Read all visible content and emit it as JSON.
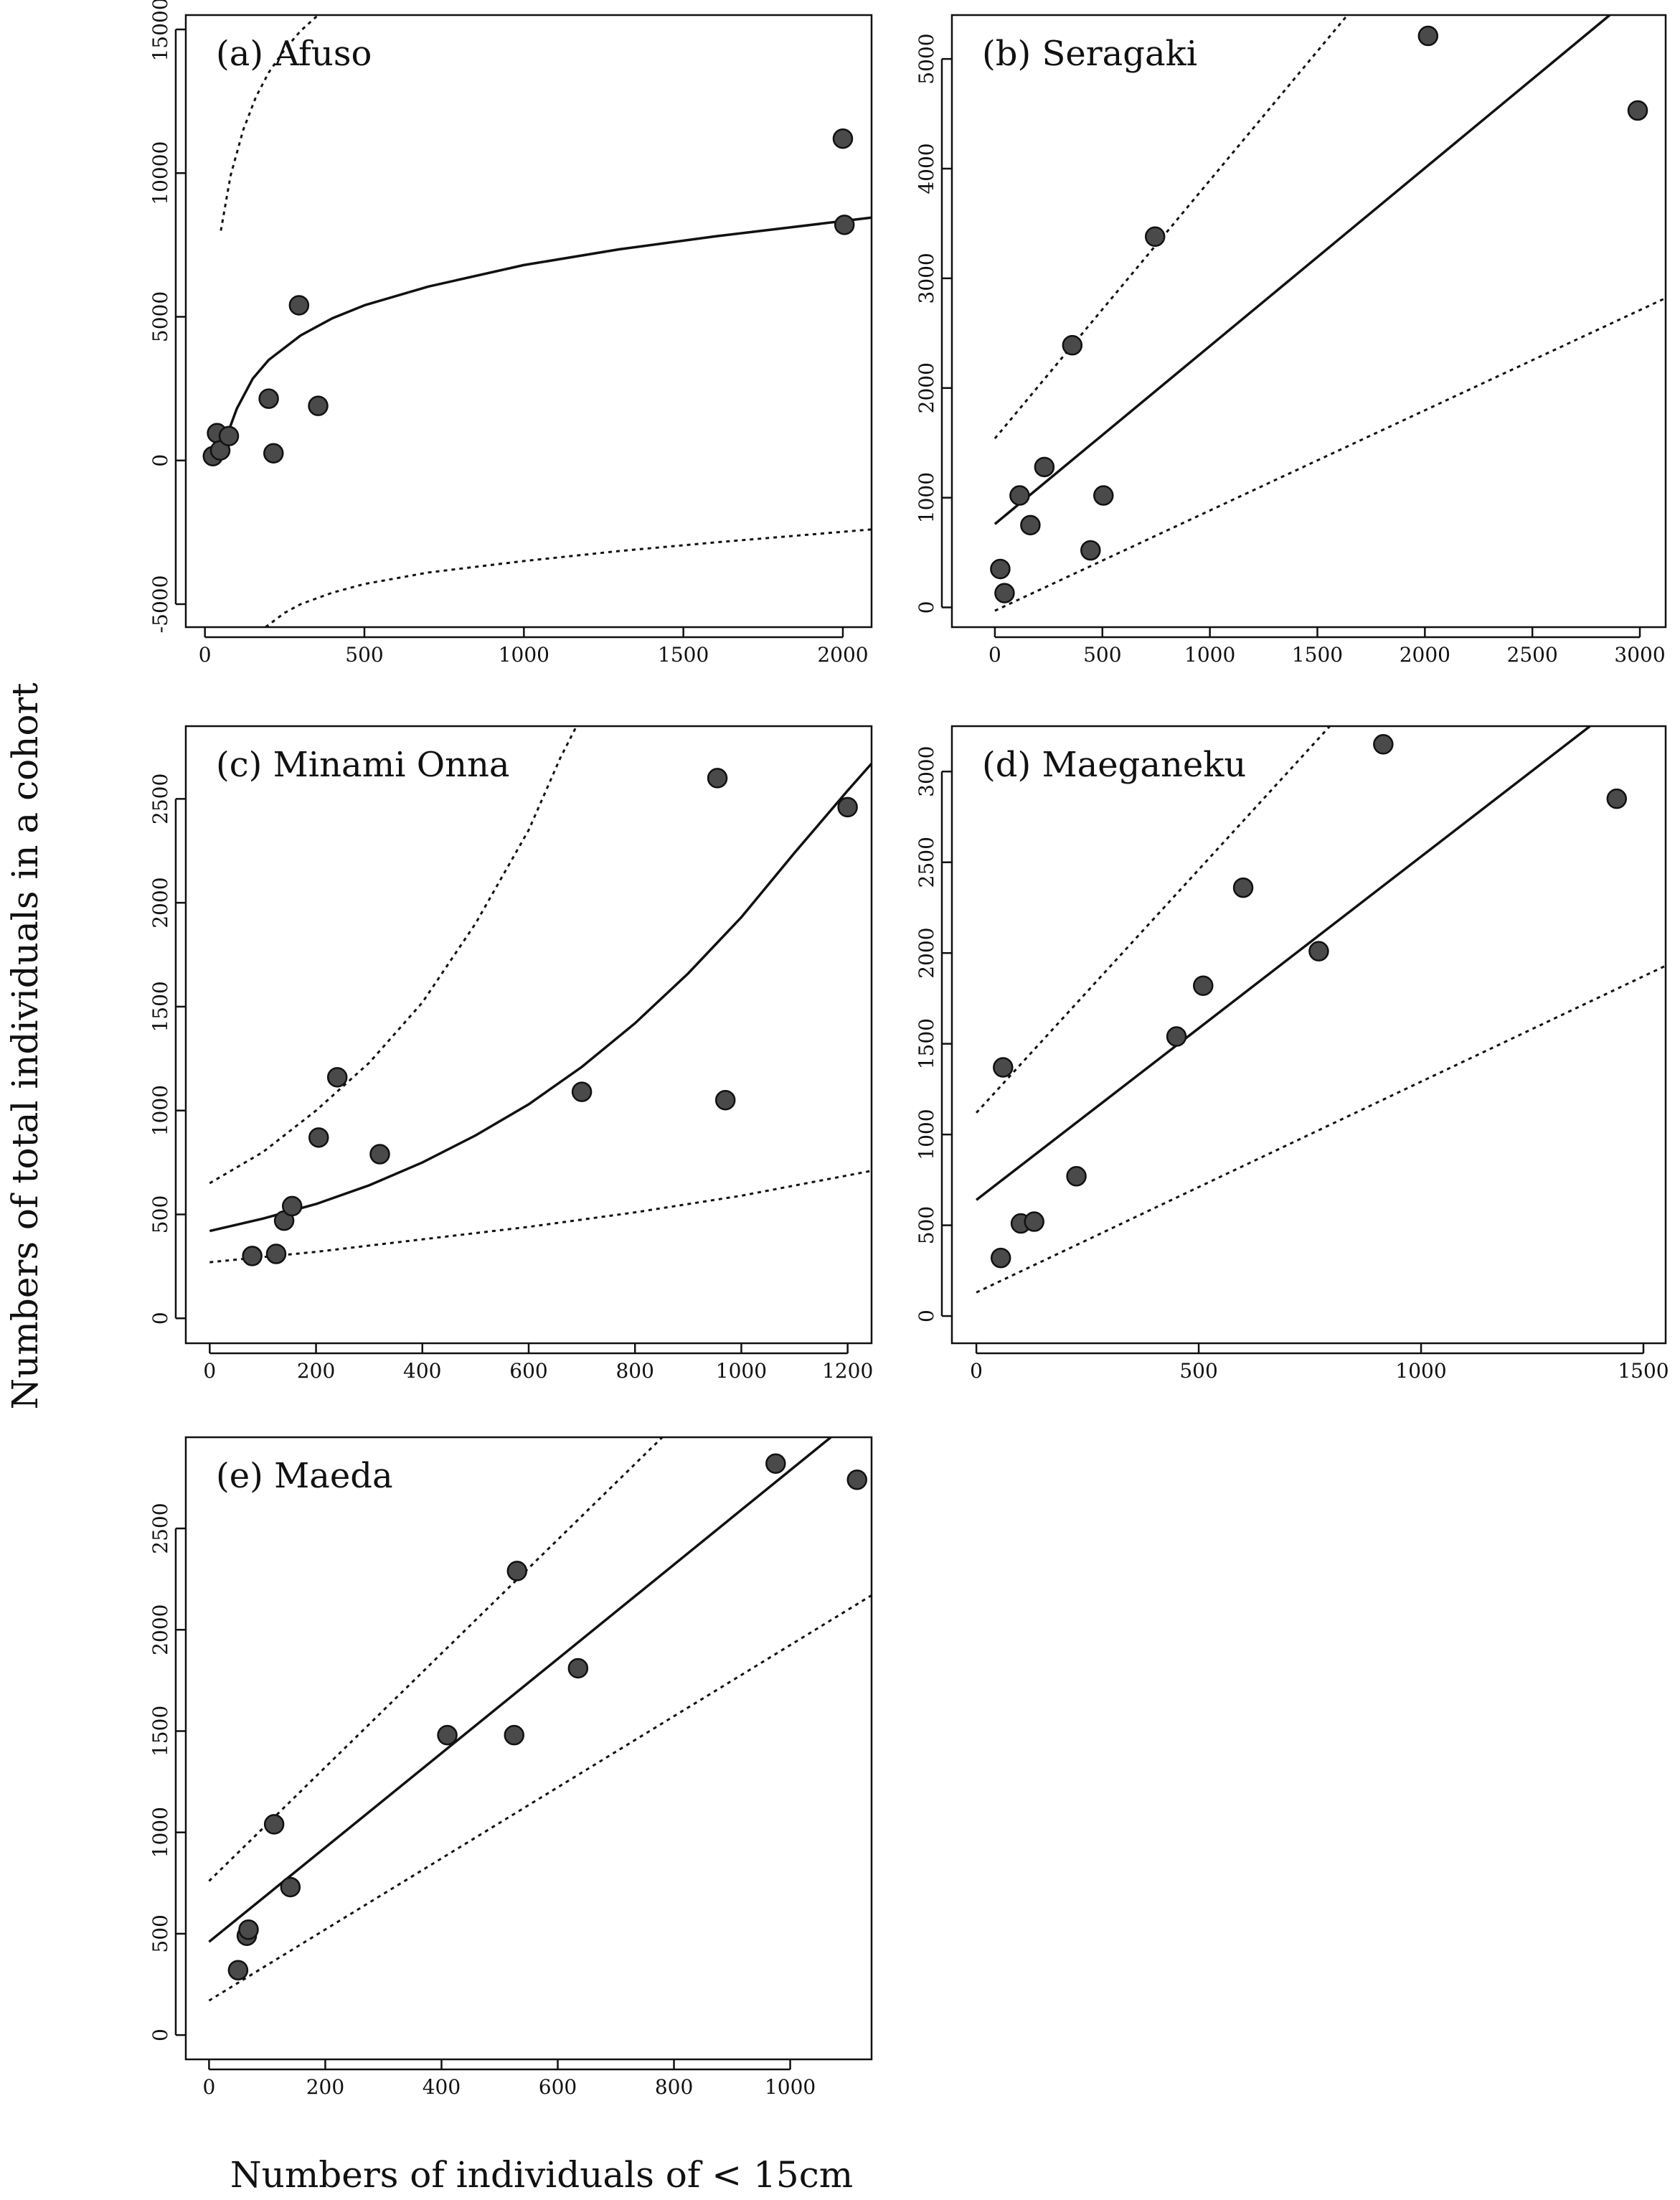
{
  "figure": {
    "ylabel": "Numbers of total individuals in a cohort",
    "xlabel": "Numbers of individuals of < 15cm"
  },
  "chart_data": [
    {
      "id": "a",
      "type": "scatter",
      "title": "(a) Afuso",
      "xlim": [
        -60,
        2090
      ],
      "ylim": [
        -5800,
        15500
      ],
      "xticks": [
        0,
        500,
        1000,
        1500,
        2000
      ],
      "yticks": [
        -5000,
        0,
        5000,
        10000,
        15000
      ],
      "points": [
        [
          25,
          150
        ],
        [
          38,
          950
        ],
        [
          48,
          350
        ],
        [
          75,
          850
        ],
        [
          200,
          2150
        ],
        [
          215,
          250
        ],
        [
          295,
          5400
        ],
        [
          355,
          1900
        ],
        [
          2000,
          11200
        ],
        [
          2005,
          8200
        ]
      ],
      "fit": {
        "kind": "log",
        "x": [
          75,
          100,
          150,
          200,
          300,
          400,
          500,
          700,
          1000,
          1300,
          1600,
          2090
        ],
        "y": [
          1050,
          1800,
          2850,
          3500,
          4350,
          4950,
          5400,
          6050,
          6800,
          7350,
          7800,
          8450
        ]
      },
      "upper": {
        "kind": "curve",
        "x": [
          50,
          80,
          120,
          160,
          200,
          250,
          300,
          350,
          400
        ],
        "y": [
          8000,
          9900,
          11500,
          12650,
          13500,
          14300,
          14950,
          15450,
          15800
        ]
      },
      "lower": {
        "kind": "curve",
        "x": [
          190,
          250,
          300,
          400,
          500,
          700,
          1000,
          1300,
          1600,
          2090
        ],
        "y": [
          -5800,
          -5300,
          -5000,
          -4600,
          -4300,
          -3900,
          -3500,
          -3150,
          -2850,
          -2400
        ]
      }
    },
    {
      "id": "b",
      "type": "scatter",
      "title": "(b) Seragaki",
      "xlim": [
        -200,
        3120
      ],
      "ylim": [
        -180,
        5400
      ],
      "xticks": [
        0,
        500,
        1000,
        1500,
        2000,
        2500,
        3000
      ],
      "yticks": [
        0,
        1000,
        2000,
        3000,
        4000,
        5000
      ],
      "points": [
        [
          25,
          350
        ],
        [
          45,
          130
        ],
        [
          115,
          1020
        ],
        [
          165,
          750
        ],
        [
          230,
          1280
        ],
        [
          360,
          2390
        ],
        [
          445,
          520
        ],
        [
          505,
          1020
        ],
        [
          745,
          3380
        ],
        [
          2015,
          5210
        ],
        [
          2990,
          4530
        ]
      ],
      "fit": {
        "kind": "line",
        "x": [
          0,
          2860
        ],
        "y": [
          760,
          5400
        ]
      },
      "upper": {
        "kind": "line",
        "x": [
          0,
          1640
        ],
        "y": [
          1540,
          5400
        ]
      },
      "lower": {
        "kind": "line",
        "x": [
          0,
          3120
        ],
        "y": [
          -30,
          2820
        ]
      }
    },
    {
      "id": "c",
      "type": "scatter",
      "title": "(c) Minami Onna",
      "xlim": [
        -45,
        1245
      ],
      "ylim": [
        -120,
        2850
      ],
      "xticks": [
        0,
        200,
        400,
        600,
        800,
        1000,
        1200
      ],
      "yticks": [
        0,
        500,
        1000,
        1500,
        2000,
        2500
      ],
      "points": [
        [
          80,
          300
        ],
        [
          125,
          310
        ],
        [
          140,
          470
        ],
        [
          155,
          540
        ],
        [
          205,
          870
        ],
        [
          240,
          1160
        ],
        [
          320,
          790
        ],
        [
          700,
          1090
        ],
        [
          955,
          2600
        ],
        [
          970,
          1050
        ],
        [
          1200,
          2460
        ]
      ],
      "fit": {
        "kind": "curve",
        "x": [
          0,
          100,
          200,
          300,
          400,
          500,
          600,
          700,
          800,
          900,
          1000,
          1100,
          1200,
          1245
        ],
        "y": [
          420,
          480,
          550,
          640,
          750,
          880,
          1030,
          1210,
          1420,
          1660,
          1930,
          2240,
          2540,
          2670
        ]
      },
      "upper": {
        "kind": "curve",
        "x": [
          0,
          100,
          200,
          300,
          400,
          500,
          600,
          660,
          700
        ],
        "y": [
          650,
          800,
          1000,
          1230,
          1520,
          1900,
          2350,
          2700,
          2900
        ]
      },
      "lower": {
        "kind": "curve",
        "x": [
          0,
          200,
          400,
          600,
          800,
          1000,
          1245
        ],
        "y": [
          270,
          320,
          380,
          440,
          510,
          590,
          710
        ]
      }
    },
    {
      "id": "d",
      "type": "scatter",
      "title": "(d) Maeganeku",
      "xlim": [
        -55,
        1550
      ],
      "ylim": [
        -150,
        3250
      ],
      "xticks": [
        0,
        500,
        1000,
        1500
      ],
      "yticks": [
        0,
        500,
        1000,
        1500,
        2000,
        2500,
        3000
      ],
      "points": [
        [
          55,
          320
        ],
        [
          60,
          1370
        ],
        [
          100,
          510
        ],
        [
          130,
          520
        ],
        [
          225,
          770
        ],
        [
          450,
          1540
        ],
        [
          510,
          1820
        ],
        [
          600,
          2360
        ],
        [
          770,
          2010
        ],
        [
          915,
          3150
        ],
        [
          1440,
          2850
        ]
      ],
      "fit": {
        "kind": "line",
        "x": [
          0,
          1380
        ],
        "y": [
          640,
          3250
        ]
      },
      "upper": {
        "kind": "line",
        "x": [
          0,
          795
        ],
        "y": [
          1120,
          3250
        ]
      },
      "lower": {
        "kind": "line",
        "x": [
          0,
          1550
        ],
        "y": [
          130,
          1930
        ]
      }
    },
    {
      "id": "e",
      "type": "scatter",
      "title": "(e) Maeda",
      "xlim": [
        -40,
        1140
      ],
      "ylim": [
        -120,
        2950
      ],
      "xticks": [
        0,
        200,
        400,
        600,
        800,
        1000
      ],
      "yticks": [
        0,
        500,
        1000,
        1500,
        2000,
        2500
      ],
      "points": [
        [
          50,
          320
        ],
        [
          65,
          490
        ],
        [
          68,
          520
        ],
        [
          112,
          1040
        ],
        [
          140,
          730
        ],
        [
          410,
          1480
        ],
        [
          525,
          1480
        ],
        [
          530,
          2290
        ],
        [
          635,
          1810
        ],
        [
          975,
          2820
        ],
        [
          1115,
          2740
        ]
      ],
      "fit": {
        "kind": "line",
        "x": [
          0,
          1070
        ],
        "y": [
          460,
          2950
        ]
      },
      "upper": {
        "kind": "line",
        "x": [
          0,
          780
        ],
        "y": [
          760,
          2950
        ]
      },
      "lower": {
        "kind": "line",
        "x": [
          0,
          1140
        ],
        "y": [
          170,
          2170
        ]
      }
    }
  ]
}
